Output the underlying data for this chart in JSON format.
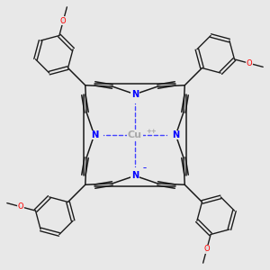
{
  "bg_color": "#e8e8e8",
  "cu_color": "#aaaaaa",
  "n_color": "#0000ff",
  "bond_color": "#1a1a1a",
  "o_color": "#ff0000",
  "dashed_color": "#4444ff",
  "lw": 1.1,
  "lw_ph": 1.0,
  "dbo": 0.038,
  "xlim": [
    -2.6,
    2.6
  ],
  "ylim": [
    -2.6,
    2.6
  ]
}
